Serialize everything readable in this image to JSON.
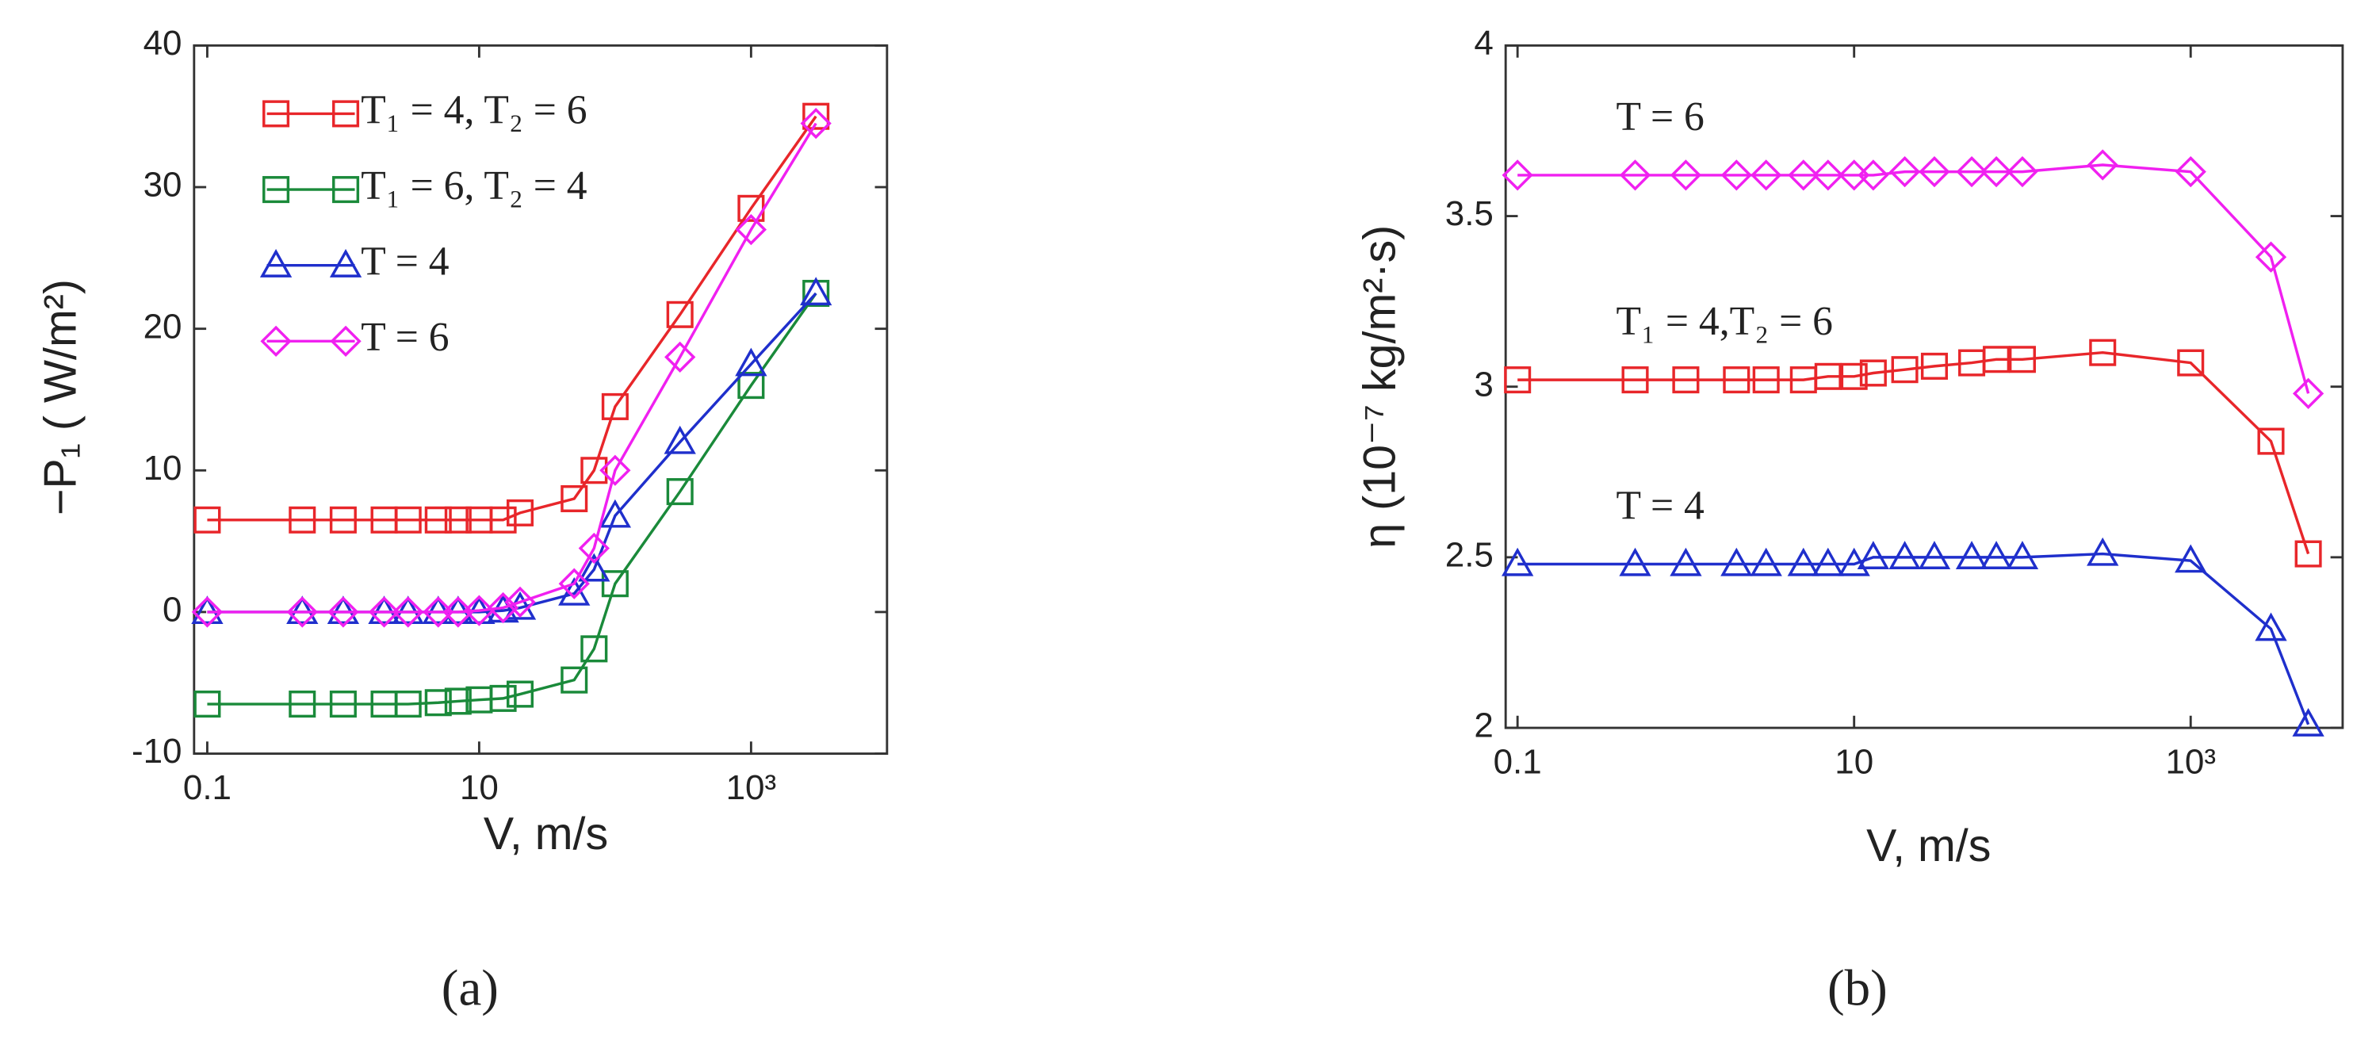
{
  "chart_data": [
    {
      "type": "line",
      "caption": "(a)",
      "x_label": "V, m/s",
      "y_label": "−P₁ ( W/m²)",
      "xscale": "log",
      "xlim": [
        0.08,
        10000
      ],
      "ylim": [
        -10,
        40
      ],
      "xticks": [
        0.1,
        10,
        {
          "value": 1000,
          "label": "10³"
        }
      ],
      "yticks": [
        -10,
        0,
        10,
        20,
        30,
        40
      ],
      "legend": "upper left",
      "x": [
        0.1,
        0.5,
        1,
        2,
        3,
        5,
        7,
        10,
        15,
        20,
        50,
        70,
        100,
        300,
        1000,
        3000
      ],
      "series": [
        {
          "name": "T₁ = 4, T₂ = 6",
          "color": "#e8262a",
          "marker": "square",
          "values": [
            6.5,
            6.5,
            6.5,
            6.5,
            6.5,
            6.5,
            6.5,
            6.5,
            6.5,
            7,
            8,
            10,
            14.5,
            21,
            28.5,
            35
          ]
        },
        {
          "name": "T₁ = 6, T₂ = 4",
          "color": "#1a8a3a",
          "marker": "square",
          "values": [
            -6.5,
            -6.5,
            -6.5,
            -6.5,
            -6.5,
            -6.4,
            -6.3,
            -6.2,
            -6.1,
            -5.8,
            -4.8,
            -2.6,
            2,
            8.5,
            16,
            22.5
          ]
        },
        {
          "name": "T = 4",
          "color": "#1f2fcc",
          "marker": "triangle",
          "values": [
            0,
            0,
            0,
            0,
            0,
            0,
            0,
            0,
            0.1,
            0.3,
            1.3,
            3,
            6.8,
            12,
            17.5,
            22.5
          ]
        },
        {
          "name": "T = 6",
          "color": "#f020f0",
          "marker": "diamond",
          "values": [
            0,
            0,
            0,
            0,
            0,
            0,
            0,
            0.1,
            0.3,
            0.7,
            2,
            4.5,
            10,
            18,
            27,
            34.5
          ]
        }
      ]
    },
    {
      "type": "line",
      "caption": "(b)",
      "x_label": "V, m/s",
      "y_label": "η (10⁻⁷ kg/m²·s)",
      "xscale": "log",
      "xlim": [
        0.085,
        8000
      ],
      "ylim": [
        2,
        4
      ],
      "xticks": [
        0.1,
        10,
        {
          "value": 1000,
          "label": "10³"
        }
      ],
      "yticks": [
        2,
        2.5,
        3,
        3.5,
        4
      ],
      "x": [
        0.1,
        0.5,
        1,
        2,
        3,
        5,
        7,
        10,
        13,
        20,
        30,
        50,
        70,
        100,
        300,
        1000,
        3000,
        5000
      ],
      "series": [
        {
          "name": "T = 6",
          "color": "#f020f0",
          "marker": "diamond",
          "values": [
            3.62,
            3.62,
            3.62,
            3.62,
            3.62,
            3.62,
            3.62,
            3.62,
            3.62,
            3.63,
            3.63,
            3.63,
            3.63,
            3.63,
            3.65,
            3.63,
            3.38,
            2.98
          ]
        },
        {
          "name": "T₁ = 4,T₂ = 6",
          "color": "#e8262a",
          "marker": "square",
          "values": [
            3.02,
            3.02,
            3.02,
            3.02,
            3.02,
            3.02,
            3.03,
            3.03,
            3.04,
            3.05,
            3.06,
            3.07,
            3.08,
            3.08,
            3.1,
            3.07,
            2.84,
            2.51
          ]
        },
        {
          "name": "T = 4",
          "color": "#1f2fcc",
          "marker": "triangle",
          "values": [
            2.48,
            2.48,
            2.48,
            2.48,
            2.48,
            2.48,
            2.48,
            2.48,
            2.5,
            2.5,
            2.5,
            2.5,
            2.5,
            2.5,
            2.51,
            2.49,
            2.29,
            2.01
          ]
        }
      ]
    }
  ]
}
